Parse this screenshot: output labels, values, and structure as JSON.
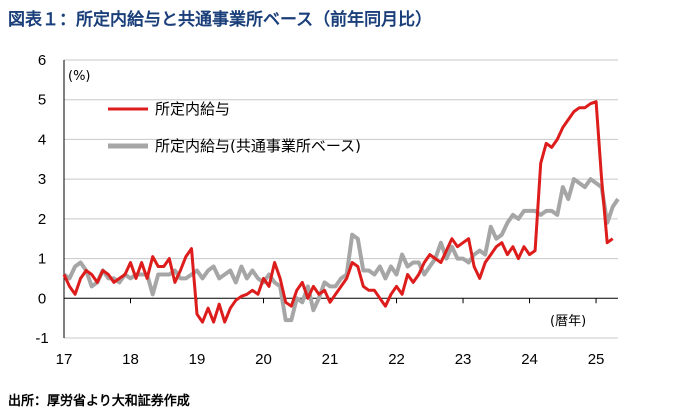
{
  "title": "図表１：所定内給与と共通事業所ベース（前年同月比）",
  "source": "出所：厚労省より大和証券作成",
  "chart_data": {
    "type": "line",
    "unit_label": "(%)",
    "xlabel": "(暦年)",
    "ylim": [
      -1,
      6
    ],
    "yticks": [
      -1,
      0,
      1,
      2,
      3,
      4,
      5,
      6
    ],
    "xlim": [
      2017.0,
      2025.33
    ],
    "xticks": [
      {
        "x": 2017,
        "label": "17"
      },
      {
        "x": 2018,
        "label": "18"
      },
      {
        "x": 2019,
        "label": "19"
      },
      {
        "x": 2020,
        "label": "20"
      },
      {
        "x": 2021,
        "label": "21"
      },
      {
        "x": 2022,
        "label": "22"
      },
      {
        "x": 2023,
        "label": "23"
      },
      {
        "x": 2024,
        "label": "24"
      },
      {
        "x": 2025,
        "label": "25"
      }
    ],
    "grid": true,
    "legend_position": "top-left",
    "series": [
      {
        "name": "所定内給与",
        "color": "#dd1c1c",
        "x": [
          2017.0,
          2017.083,
          2017.167,
          2017.25,
          2017.333,
          2017.417,
          2017.5,
          2017.583,
          2017.667,
          2017.75,
          2017.833,
          2017.917,
          2018.0,
          2018.083,
          2018.167,
          2018.25,
          2018.333,
          2018.417,
          2018.5,
          2018.583,
          2018.667,
          2018.75,
          2018.833,
          2018.917,
          2019.0,
          2019.083,
          2019.167,
          2019.25,
          2019.333,
          2019.417,
          2019.5,
          2019.583,
          2019.667,
          2019.75,
          2019.833,
          2019.917,
          2020.0,
          2020.083,
          2020.167,
          2020.25,
          2020.333,
          2020.417,
          2020.5,
          2020.583,
          2020.667,
          2020.75,
          2020.833,
          2020.917,
          2021.0,
          2021.083,
          2021.167,
          2021.25,
          2021.333,
          2021.417,
          2021.5,
          2021.583,
          2021.667,
          2021.75,
          2021.833,
          2021.917,
          2022.0,
          2022.083,
          2022.167,
          2022.25,
          2022.333,
          2022.417,
          2022.5,
          2022.583,
          2022.667,
          2022.75,
          2022.833,
          2022.917,
          2023.0,
          2023.083,
          2023.167,
          2023.25,
          2023.333,
          2023.417,
          2023.5,
          2023.583,
          2023.667,
          2023.75,
          2023.833,
          2023.917,
          2024.0,
          2024.083,
          2024.167,
          2024.25,
          2024.333,
          2024.417,
          2024.5,
          2024.583,
          2024.667,
          2024.75,
          2024.833,
          2024.917,
          2025.0,
          2025.083,
          2025.167,
          2025.25
        ],
        "values": [
          0.6,
          0.3,
          0.1,
          0.5,
          0.7,
          0.6,
          0.4,
          0.7,
          0.6,
          0.4,
          0.5,
          0.6,
          0.9,
          0.5,
          0.9,
          0.5,
          1.05,
          0.8,
          0.8,
          1.0,
          0.4,
          0.7,
          1.05,
          1.25,
          -0.4,
          -0.6,
          -0.25,
          -0.6,
          -0.15,
          -0.6,
          -0.25,
          -0.05,
          0.05,
          0.1,
          0.2,
          0.1,
          0.5,
          0.3,
          0.9,
          0.5,
          -0.1,
          -0.2,
          0.2,
          0.4,
          0.0,
          0.3,
          0.1,
          0.2,
          -0.1,
          0.1,
          0.3,
          0.5,
          0.9,
          0.8,
          0.3,
          0.2,
          0.2,
          0.0,
          -0.2,
          0.1,
          0.3,
          0.1,
          0.6,
          0.4,
          0.6,
          0.9,
          1.1,
          1.0,
          0.9,
          1.2,
          1.5,
          1.3,
          1.4,
          1.5,
          0.8,
          0.5,
          0.9,
          1.1,
          1.3,
          1.4,
          1.1,
          1.3,
          1.0,
          1.3,
          1.1,
          1.2,
          3.4,
          3.9,
          3.8,
          4.0,
          4.3,
          4.5,
          4.7,
          4.8,
          4.8,
          4.9,
          4.95,
          3.0,
          1.4,
          1.5
        ]
      },
      {
        "name": "所定内給与(共通事業所ベース)",
        "color": "#a6a6a6",
        "x": [
          2017.0,
          2017.083,
          2017.167,
          2017.25,
          2017.333,
          2017.417,
          2017.5,
          2017.583,
          2017.667,
          2017.75,
          2017.833,
          2017.917,
          2018.0,
          2018.083,
          2018.167,
          2018.25,
          2018.333,
          2018.417,
          2018.5,
          2018.583,
          2018.667,
          2018.75,
          2018.833,
          2018.917,
          2019.0,
          2019.083,
          2019.167,
          2019.25,
          2019.333,
          2019.417,
          2019.5,
          2019.583,
          2019.667,
          2019.75,
          2019.833,
          2019.917,
          2020.0,
          2020.083,
          2020.167,
          2020.25,
          2020.333,
          2020.417,
          2020.5,
          2020.583,
          2020.667,
          2020.75,
          2020.833,
          2020.917,
          2021.0,
          2021.083,
          2021.167,
          2021.25,
          2021.333,
          2021.417,
          2021.5,
          2021.583,
          2021.667,
          2021.75,
          2021.833,
          2021.917,
          2022.0,
          2022.083,
          2022.167,
          2022.25,
          2022.333,
          2022.417,
          2022.5,
          2022.583,
          2022.667,
          2022.75,
          2022.833,
          2022.917,
          2023.0,
          2023.083,
          2023.167,
          2023.25,
          2023.333,
          2023.417,
          2023.5,
          2023.583,
          2023.667,
          2023.75,
          2023.833,
          2023.917,
          2024.0,
          2024.083,
          2024.167,
          2024.25,
          2024.333,
          2024.417,
          2024.5,
          2024.583,
          2024.667,
          2024.75,
          2024.833,
          2024.917,
          2025.0,
          2025.083,
          2025.167,
          2025.25,
          2025.33
        ],
        "values": [
          0.6,
          0.5,
          0.8,
          0.9,
          0.7,
          0.3,
          0.4,
          0.7,
          0.5,
          0.5,
          0.4,
          0.6,
          0.5,
          0.6,
          0.6,
          0.6,
          0.1,
          0.6,
          0.6,
          0.6,
          0.7,
          0.5,
          0.5,
          0.6,
          0.7,
          0.5,
          0.7,
          0.8,
          0.5,
          0.6,
          0.7,
          0.4,
          0.8,
          0.5,
          0.7,
          0.5,
          0.4,
          0.6,
          0.4,
          0.3,
          -0.55,
          -0.55,
          0.0,
          -0.1,
          0.3,
          -0.3,
          0.0,
          0.4,
          0.3,
          0.3,
          0.5,
          0.6,
          1.6,
          1.5,
          0.7,
          0.7,
          0.6,
          0.8,
          0.5,
          0.8,
          0.6,
          1.1,
          0.8,
          0.9,
          0.9,
          0.6,
          0.8,
          1.0,
          1.4,
          1.0,
          1.3,
          1.0,
          1.0,
          0.9,
          1.1,
          1.2,
          1.1,
          1.8,
          1.5,
          1.6,
          1.9,
          2.1,
          2.0,
          2.2,
          2.2,
          2.2,
          2.1,
          2.2,
          2.2,
          2.1,
          2.8,
          2.5,
          3.0,
          2.9,
          2.8,
          3.0,
          2.9,
          2.8,
          1.9,
          2.3,
          2.5
        ]
      }
    ]
  }
}
